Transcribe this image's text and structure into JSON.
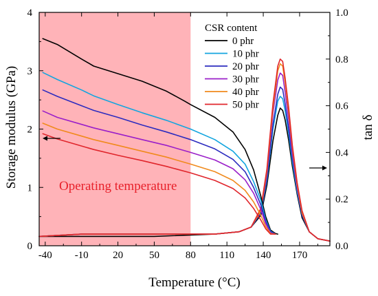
{
  "chart_data": {
    "type": "line",
    "xlabel": "Temperature (°C)",
    "ylabel_left": "Storage modulus (GPa)",
    "ylabel_right": "tan δ",
    "xlim": [
      -45,
      195
    ],
    "ylim_left": [
      0,
      4
    ],
    "ylim_right": [
      0,
      1.0
    ],
    "x_ticks": [
      -40,
      -10,
      20,
      50,
      80,
      110,
      140,
      170
    ],
    "y_left_ticks": [
      0,
      1,
      2,
      3,
      4
    ],
    "y_right_ticks": [
      "0.0",
      "0.2",
      "0.4",
      "0.6",
      "0.8",
      "1.0"
    ],
    "shaded_region": {
      "x_from": -45,
      "x_to": 80,
      "color": "#ffb3b8",
      "label": "Operating temperature",
      "label_color": "#e8202a"
    },
    "legend": {
      "title": "CSR content",
      "placement": "top-right"
    },
    "series": [
      {
        "name": "0 phr",
        "color": "#000000",
        "storage_modulus": {
          "x": [
            -42,
            -30,
            -10,
            0,
            20,
            40,
            60,
            75,
            80,
            100,
            115,
            125,
            132,
            138,
            142,
            146,
            150,
            152
          ],
          "y": [
            3.55,
            3.45,
            3.2,
            3.08,
            2.95,
            2.82,
            2.65,
            2.48,
            2.42,
            2.2,
            1.95,
            1.65,
            1.3,
            0.85,
            0.5,
            0.27,
            0.21,
            0.2
          ]
        },
        "tan_delta": {
          "x": [
            -45,
            0,
            50,
            100,
            120,
            130,
            138,
            143,
            148,
            152,
            154,
            156,
            158,
            161,
            164,
            168,
            172,
            178,
            185,
            195
          ],
          "y": [
            0.04,
            0.04,
            0.04,
            0.05,
            0.06,
            0.08,
            0.13,
            0.26,
            0.45,
            0.56,
            0.59,
            0.58,
            0.54,
            0.45,
            0.34,
            0.22,
            0.12,
            0.06,
            0.03,
            0.02
          ]
        }
      },
      {
        "name": "10 phr",
        "color": "#12a5df",
        "storage_modulus": {
          "x": [
            -42,
            -30,
            -10,
            0,
            20,
            40,
            60,
            80,
            100,
            115,
            125,
            132,
            138,
            142,
            146,
            150
          ],
          "y": [
            2.97,
            2.85,
            2.67,
            2.57,
            2.42,
            2.28,
            2.15,
            2.0,
            1.82,
            1.62,
            1.4,
            1.1,
            0.78,
            0.45,
            0.25,
            0.2
          ]
        },
        "tan_delta": {
          "x": [
            -45,
            -10,
            0,
            50,
            100,
            120,
            130,
            138,
            143,
            148,
            152,
            154,
            156,
            158,
            161,
            164,
            168,
            172,
            178,
            185,
            195
          ],
          "y": [
            0.04,
            0.05,
            0.05,
            0.05,
            0.05,
            0.06,
            0.08,
            0.14,
            0.28,
            0.5,
            0.62,
            0.64,
            0.63,
            0.58,
            0.48,
            0.36,
            0.23,
            0.13,
            0.06,
            0.03,
            0.02
          ]
        }
      },
      {
        "name": "20 phr",
        "color": "#2b2bbf",
        "storage_modulus": {
          "x": [
            -42,
            -30,
            -10,
            0,
            20,
            40,
            60,
            80,
            100,
            115,
            125,
            132,
            138,
            142,
            146,
            150
          ],
          "y": [
            2.67,
            2.56,
            2.4,
            2.32,
            2.2,
            2.07,
            1.95,
            1.82,
            1.66,
            1.48,
            1.27,
            1.0,
            0.7,
            0.42,
            0.24,
            0.2
          ]
        },
        "tan_delta": {
          "x": [
            -45,
            -10,
            0,
            50,
            100,
            120,
            130,
            138,
            143,
            148,
            152,
            154,
            156,
            158,
            161,
            164,
            168,
            172,
            178,
            185,
            195
          ],
          "y": [
            0.04,
            0.05,
            0.05,
            0.05,
            0.05,
            0.06,
            0.08,
            0.14,
            0.29,
            0.52,
            0.65,
            0.68,
            0.67,
            0.61,
            0.5,
            0.38,
            0.24,
            0.13,
            0.06,
            0.03,
            0.02
          ]
        }
      },
      {
        "name": "30 phr",
        "color": "#9a1fc9",
        "storage_modulus": {
          "x": [
            -42,
            -30,
            -10,
            0,
            20,
            40,
            60,
            80,
            100,
            115,
            125,
            132,
            138,
            142,
            146,
            150
          ],
          "y": [
            2.31,
            2.2,
            2.08,
            2.02,
            1.92,
            1.82,
            1.72,
            1.6,
            1.47,
            1.32,
            1.13,
            0.9,
            0.62,
            0.38,
            0.22,
            0.2
          ]
        },
        "tan_delta": {
          "x": [
            -45,
            -10,
            0,
            50,
            100,
            120,
            130,
            138,
            143,
            148,
            152,
            154,
            156,
            158,
            161,
            164,
            168,
            172,
            178,
            185,
            195
          ],
          "y": [
            0.04,
            0.05,
            0.05,
            0.05,
            0.05,
            0.06,
            0.08,
            0.15,
            0.31,
            0.57,
            0.71,
            0.74,
            0.73,
            0.66,
            0.54,
            0.4,
            0.25,
            0.14,
            0.06,
            0.03,
            0.02
          ]
        }
      },
      {
        "name": "40 phr",
        "color": "#f08a1c",
        "storage_modulus": {
          "x": [
            -42,
            -30,
            -10,
            0,
            20,
            40,
            60,
            80,
            100,
            115,
            125,
            132,
            138,
            142,
            146,
            150
          ],
          "y": [
            2.1,
            2.0,
            1.88,
            1.82,
            1.72,
            1.62,
            1.52,
            1.4,
            1.27,
            1.12,
            0.95,
            0.75,
            0.52,
            0.33,
            0.21,
            0.2
          ]
        },
        "tan_delta": {
          "x": [
            -45,
            -10,
            0,
            50,
            100,
            120,
            130,
            138,
            143,
            148,
            152,
            154,
            156,
            158,
            161,
            164,
            168,
            172,
            178,
            185,
            195
          ],
          "y": [
            0.04,
            0.05,
            0.05,
            0.05,
            0.05,
            0.06,
            0.08,
            0.15,
            0.32,
            0.59,
            0.75,
            0.78,
            0.77,
            0.7,
            0.57,
            0.42,
            0.26,
            0.14,
            0.06,
            0.03,
            0.02
          ]
        }
      },
      {
        "name": "50 phr",
        "color": "#e0252b",
        "storage_modulus": {
          "x": [
            -42,
            -30,
            -10,
            0,
            20,
            40,
            60,
            80,
            100,
            115,
            125,
            132,
            138,
            142,
            146,
            150
          ],
          "y": [
            1.92,
            1.83,
            1.71,
            1.65,
            1.55,
            1.46,
            1.36,
            1.25,
            1.12,
            0.98,
            0.82,
            0.64,
            0.44,
            0.29,
            0.2,
            0.2
          ]
        },
        "tan_delta": {
          "x": [
            -45,
            -10,
            0,
            50,
            100,
            120,
            130,
            138,
            143,
            148,
            152,
            154,
            156,
            158,
            161,
            164,
            168,
            172,
            178,
            185,
            195
          ],
          "y": [
            0.04,
            0.05,
            0.05,
            0.05,
            0.05,
            0.06,
            0.08,
            0.16,
            0.33,
            0.61,
            0.77,
            0.8,
            0.79,
            0.72,
            0.59,
            0.43,
            0.27,
            0.15,
            0.06,
            0.03,
            0.02
          ]
        }
      }
    ]
  }
}
